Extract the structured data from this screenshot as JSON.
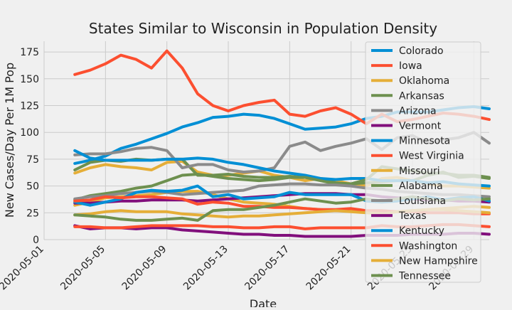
{
  "chart_data": {
    "type": "line",
    "title": "States Similar to Wisconsin in Population Density",
    "xlabel": "Date",
    "ylabel": "New Cases/Day Per 1M Pop",
    "x_ticks": [
      "2020-05-01",
      "2020-05-05",
      "2020-05-09",
      "2020-05-13",
      "2020-05-17",
      "2020-05-21",
      "2020-05-25",
      "2020-05-29"
    ],
    "y_ticks": [
      0,
      25,
      50,
      75,
      100,
      125,
      150,
      175
    ],
    "xlim": [
      "2020-05-01",
      "2020-05-30"
    ],
    "ylim": [
      0,
      185
    ],
    "grid": true,
    "legend_position": "right",
    "x": [
      "2020-05-03",
      "2020-05-04",
      "2020-05-05",
      "2020-05-06",
      "2020-05-07",
      "2020-05-08",
      "2020-05-09",
      "2020-05-10",
      "2020-05-11",
      "2020-05-12",
      "2020-05-13",
      "2020-05-14",
      "2020-05-15",
      "2020-05-16",
      "2020-05-17",
      "2020-05-18",
      "2020-05-19",
      "2020-05-20",
      "2020-05-21",
      "2020-05-22",
      "2020-05-23",
      "2020-05-24",
      "2020-05-25",
      "2020-05-26",
      "2020-05-27",
      "2020-05-28",
      "2020-05-29",
      "2020-05-30"
    ],
    "series": [
      {
        "name": "Colorado",
        "color": "#008fd5",
        "values": [
          71,
          74,
          78,
          85,
          89,
          94,
          99,
          105,
          109,
          114,
          115,
          117,
          116,
          113,
          108,
          103,
          104,
          105,
          108,
          113,
          115,
          119,
          119,
          119,
          121,
          123,
          124,
          122
        ]
      },
      {
        "name": "Iowa",
        "color": "#fc4f30",
        "values": [
          154,
          158,
          164,
          172,
          168,
          160,
          176,
          160,
          136,
          125,
          120,
          125,
          128,
          130,
          117,
          115,
          120,
          123,
          117,
          108,
          117,
          110,
          112,
          115,
          118,
          117,
          115,
          112
        ]
      },
      {
        "name": "Oklahoma",
        "color": "#e5ae38",
        "values": [
          62,
          67,
          70,
          68,
          67,
          65,
          72,
          73,
          63,
          60,
          60,
          62,
          64,
          60,
          58,
          55,
          57,
          55,
          52,
          50,
          57,
          58,
          55,
          52,
          50,
          50,
          49,
          48
        ]
      },
      {
        "name": "Arkansas",
        "color": "#6d904f",
        "values": [
          65,
          72,
          74,
          73,
          75,
          74,
          75,
          75,
          60,
          60,
          61,
          59,
          58,
          58,
          59,
          58,
          57,
          53,
          52,
          53,
          54,
          55,
          55,
          60,
          63,
          58,
          59,
          57
        ]
      },
      {
        "name": "Arizona",
        "color": "#8b8b8b",
        "values": [
          79,
          80,
          80,
          82,
          85,
          86,
          83,
          67,
          70,
          70,
          65,
          63,
          64,
          67,
          87,
          91,
          83,
          87,
          90,
          94,
          84,
          95,
          97,
          90,
          93,
          95,
          100,
          90
        ]
      },
      {
        "name": "Vermont",
        "color": "#810f7c",
        "values": [
          13,
          10,
          11,
          11,
          10,
          11,
          11,
          9,
          8,
          7,
          6,
          5,
          5,
          4,
          4,
          3,
          3,
          3,
          3,
          4,
          4,
          4,
          5,
          5,
          5,
          6,
          6,
          5
        ]
      },
      {
        "name": "Minnesota",
        "color": "#008fd5",
        "values": [
          83,
          76,
          74,
          74,
          74,
          74,
          75,
          75,
          76,
          75,
          72,
          70,
          67,
          64,
          62,
          60,
          57,
          56,
          57,
          57,
          55,
          55,
          55,
          53,
          54,
          52,
          51,
          50
        ]
      },
      {
        "name": "West Virginia",
        "color": "#fc4f30",
        "values": [
          12,
          12,
          11,
          11,
          12,
          13,
          13,
          13,
          13,
          12,
          12,
          11,
          11,
          12,
          12,
          10,
          11,
          11,
          11,
          11,
          13,
          12,
          12,
          13,
          14,
          14,
          13,
          12
        ]
      },
      {
        "name": "Missouri",
        "color": "#e5ae38",
        "values": [
          32,
          35,
          39,
          40,
          41,
          42,
          44,
          45,
          45,
          42,
          38,
          35,
          34,
          33,
          31,
          29,
          28,
          27,
          27,
          26,
          26,
          26,
          27,
          28,
          29,
          30,
          31,
          30
        ]
      },
      {
        "name": "Alabama",
        "color": "#6d904f",
        "values": [
          37,
          41,
          43,
          45,
          48,
          50,
          55,
          60,
          61,
          59,
          57,
          56,
          55,
          56,
          58,
          58,
          55,
          52,
          52,
          56,
          68,
          66,
          64,
          62,
          62,
          60,
          60,
          58
        ]
      },
      {
        "name": "Louisiana",
        "color": "#8b8b8b",
        "values": [
          38,
          40,
          41,
          43,
          44,
          45,
          44,
          42,
          43,
          44,
          45,
          46,
          50,
          51,
          52,
          52,
          51,
          51,
          50,
          48,
          47,
          45,
          44,
          43,
          42,
          42,
          41,
          40
        ]
      },
      {
        "name": "Texas",
        "color": "#810f7c",
        "values": [
          34,
          34,
          35,
          36,
          36,
          37,
          37,
          37,
          36,
          37,
          38,
          39,
          40,
          41,
          42,
          43,
          43,
          43,
          42,
          42,
          40,
          39,
          38,
          37,
          37,
          36,
          36,
          35
        ]
      },
      {
        "name": "Kentucky",
        "color": "#008fd5",
        "values": [
          35,
          32,
          35,
          38,
          44,
          46,
          45,
          46,
          50,
          40,
          42,
          38,
          39,
          40,
          44,
          42,
          42,
          42,
          42,
          36,
          35,
          36,
          38,
          40,
          37,
          39,
          40,
          36
        ]
      },
      {
        "name": "Washington",
        "color": "#fc4f30",
        "values": [
          36,
          37,
          40,
          39,
          40,
          40,
          39,
          38,
          33,
          35,
          34,
          31,
          31,
          30,
          30,
          29,
          28,
          28,
          29,
          27,
          27,
          26,
          26,
          25,
          25,
          25,
          24,
          24
        ]
      },
      {
        "name": "New Hampshire",
        "color": "#e5ae38",
        "values": [
          23,
          24,
          26,
          27,
          26,
          26,
          26,
          24,
          23,
          22,
          21,
          22,
          22,
          23,
          24,
          25,
          26,
          27,
          26,
          25,
          24,
          26,
          27,
          28,
          28,
          27,
          26,
          25
        ]
      },
      {
        "name": "Tennessee",
        "color": "#6d904f",
        "values": [
          23,
          22,
          21,
          19,
          18,
          18,
          19,
          20,
          18,
          27,
          28,
          28,
          30,
          32,
          35,
          38,
          36,
          34,
          35,
          38,
          36,
          38,
          40,
          38,
          36,
          38,
          37,
          38
        ]
      }
    ]
  }
}
